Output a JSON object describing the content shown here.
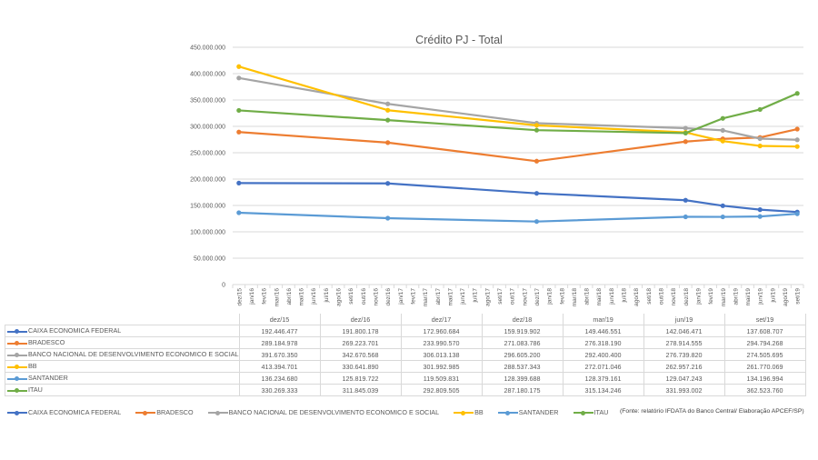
{
  "chart_data": {
    "type": "line",
    "title": "Crédito PJ - Total",
    "xlabel": "",
    "ylabel": "",
    "ylim": [
      0,
      450000000
    ],
    "y_ticks": [
      "0",
      "50.000.000",
      "100.000.000",
      "150.000.000",
      "200.000.000",
      "250.000.000",
      "300.000.000",
      "350.000.000",
      "400.000.000",
      "450.000.000"
    ],
    "y_tick_values": [
      0,
      50000000,
      100000000,
      150000000,
      200000000,
      250000000,
      300000000,
      350000000,
      400000000,
      450000000
    ],
    "grid": true,
    "x_axis_months": [
      "dez/15",
      "jan/16",
      "fev/16",
      "mar/16",
      "abr/16",
      "mai/16",
      "jun/16",
      "jul/16",
      "ago/16",
      "set/16",
      "out/16",
      "nov/16",
      "dez/16",
      "jan/17",
      "fev/17",
      "mar/17",
      "abr/17",
      "mai/17",
      "jun/17",
      "jul/17",
      "ago/17",
      "set/17",
      "out/17",
      "nov/17",
      "dez/17",
      "jan/18",
      "fev/18",
      "mar/18",
      "abr/18",
      "mai/18",
      "jun/18",
      "jul/18",
      "ago/18",
      "set/18",
      "out/18",
      "nov/18",
      "dez/18",
      "jan/19",
      "fev/19",
      "mar/19",
      "abr/19",
      "mai/19",
      "jun/19",
      "jul/19",
      "ago/19",
      "set/19"
    ],
    "categories": [
      "dez/15",
      "dez/16",
      "dez/17",
      "dez/18",
      "mar/19",
      "jun/19",
      "set/19"
    ],
    "series": [
      {
        "name": "CAIXA ECONOMICA FEDERAL",
        "color": "#4472c4",
        "values": [
          192446477,
          191800178,
          172960684,
          159919902,
          149446551,
          142046471,
          137608707
        ],
        "display": [
          "192.446.477",
          "191.800.178",
          "172.960.684",
          "159.919.902",
          "149.446.551",
          "142.046.471",
          "137.608.707"
        ]
      },
      {
        "name": "BRADESCO",
        "color": "#ed7d31",
        "values": [
          289184978,
          269223701,
          233990570,
          271083786,
          276318190,
          278914555,
          294794268
        ],
        "display": [
          "289.184.978",
          "269.223.701",
          "233.990.570",
          "271.083.786",
          "276.318.190",
          "278.914.555",
          "294.794.268"
        ]
      },
      {
        "name": "BANCO NACIONAL DE DESENVOLVIMENTO ECONOMICO E SOCIAL",
        "color": "#a5a5a5",
        "values": [
          391670350,
          342670568,
          306013138,
          296605200,
          292400400,
          276739820,
          274505695
        ],
        "display": [
          "391.670.350",
          "342.670.568",
          "306.013.138",
          "296.605.200",
          "292.400.400",
          "276.739.820",
          "274.505.695"
        ]
      },
      {
        "name": "BB",
        "color": "#ffc000",
        "values": [
          413394701,
          330641890,
          301992985,
          288537343,
          272071046,
          262957216,
          261770069
        ],
        "display": [
          "413.394.701",
          "330.641.890",
          "301.992.985",
          "288.537.343",
          "272.071.046",
          "262.957.216",
          "261.770.069"
        ]
      },
      {
        "name": "SANTANDER",
        "color": "#5b9bd5",
        "values": [
          136234680,
          125819722,
          119509831,
          128399688,
          128379161,
          129047243,
          134196994
        ],
        "display": [
          "136.234.680",
          "125.819.722",
          "119.509.831",
          "128.399.688",
          "128.379.161",
          "129.047.243",
          "134.196.994"
        ]
      },
      {
        "name": "ITAU",
        "color": "#70ad47",
        "values": [
          330269333,
          311845039,
          292809505,
          287180175,
          315134246,
          331993002,
          362523760
        ],
        "display": [
          "330.269.333",
          "311.845.039",
          "292.809.505",
          "287.180.175",
          "315.134.246",
          "331.993.002",
          "362.523.760"
        ]
      }
    ],
    "legend": "bottom",
    "source_note": "(Fonte: relatório IFDATA do Banco Central/ Elaboração APCEF/SP)"
  }
}
